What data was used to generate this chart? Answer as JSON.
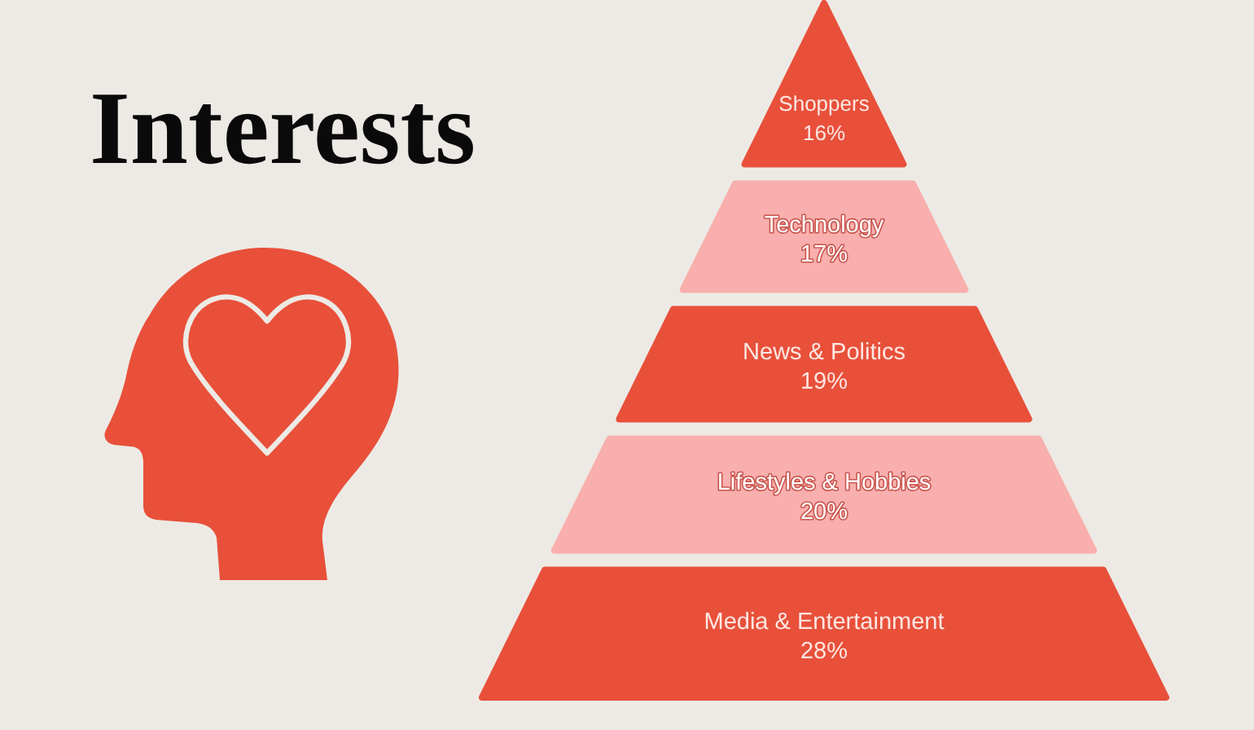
{
  "chart_data": {
    "type": "other",
    "title": "Interests",
    "categories": [
      "Shoppers",
      "Technology",
      "News & Politics",
      "Lifestyles & Hobbies",
      "Media & Entertainment"
    ],
    "values": [
      16,
      17,
      19,
      20,
      28
    ],
    "value_labels": [
      "16%",
      "17%",
      "19%",
      "20%",
      "28%"
    ],
    "colors": [
      "#e8503a",
      "#f8afad",
      "#e8503a",
      "#f8afad",
      "#e8503a"
    ]
  }
}
